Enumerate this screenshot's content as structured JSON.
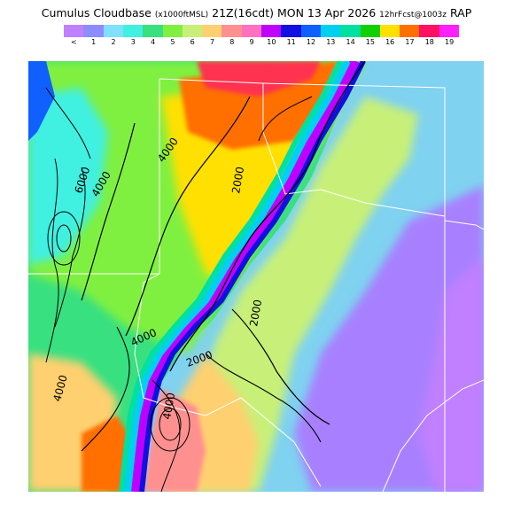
{
  "header": {
    "product": "Cumulus Cloudbase",
    "units": "(x1000ftMSL)",
    "valid": "21Z(16cdt) MON 13 Apr 2026",
    "forecast": "12hrFcst@1003z",
    "model": "RAP"
  },
  "legend": {
    "labels": [
      "<",
      "1",
      "2",
      "3",
      "4",
      "5",
      "6",
      "7",
      "8",
      "9",
      "10",
      "11",
      "12",
      "13",
      "14",
      "15",
      "16",
      "17",
      "18",
      "19"
    ],
    "colors": [
      "#c080ff",
      "#8c8cff",
      "#80e0ff",
      "#40f0e0",
      "#38e080",
      "#80f040",
      "#c8f078",
      "#ffd070",
      "#ff9090",
      "#ff70c0",
      "#c000ff",
      "#1010e0",
      "#1060ff",
      "#00d0f0",
      "#00e0a0",
      "#10d000",
      "#ffe000",
      "#ff7000",
      "#ff1060",
      "#ff20ff"
    ]
  },
  "map": {
    "contour_labels": [
      "6000",
      "4000",
      "4000",
      "2000",
      "2000",
      "2000",
      "4000",
      "4000",
      "4000"
    ]
  }
}
